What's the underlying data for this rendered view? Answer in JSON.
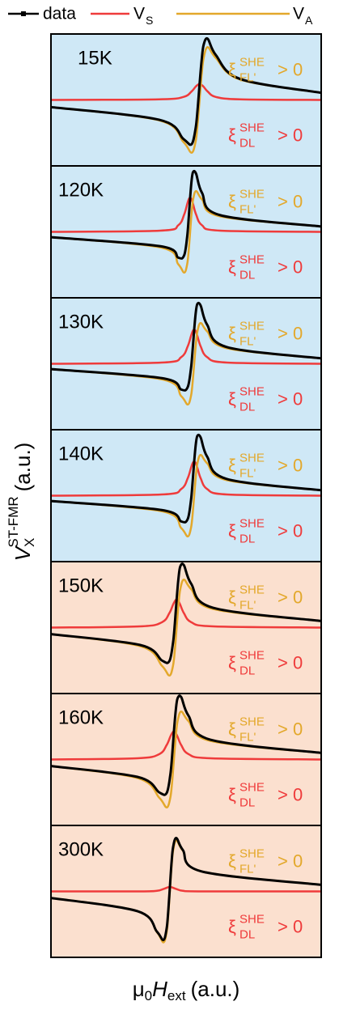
{
  "legend": [
    {
      "name": "data",
      "color": "#000000"
    },
    {
      "name": "V",
      "sub": "S",
      "color": "#ef3b3b"
    },
    {
      "name": "V",
      "sub": "A",
      "color": "#e3a82b"
    }
  ],
  "y_label": {
    "main": "V",
    "sub": "X",
    "sup": "ST-FMR",
    "unit": "(a.u.)"
  },
  "x_label": {
    "mu": "μ",
    "mu_sub": "0",
    "main": "H",
    "sub": "ext",
    "unit": "(a.u.)"
  },
  "chart_data": [
    {
      "type": "line",
      "title": "15K",
      "background": "#cfe8f6",
      "xlim": [
        0,
        100
      ],
      "ylim": [
        -1.1,
        1.1
      ],
      "x": [
        0,
        40,
        49,
        52,
        53.5,
        54.25,
        55,
        55.75,
        56.5,
        58,
        61,
        70,
        100
      ],
      "series": [
        {
          "values": [
            -0.12,
            -0.33,
            -0.65,
            -0.74,
            -0.48,
            -0.16,
            0.27,
            0.66,
            0.92,
            1.02,
            0.75,
            0.35,
            0.12
          ]
        },
        {
          "values": [
            0,
            0.01,
            0.05,
            0.14,
            0.22,
            0.25,
            0.27,
            0.25,
            0.22,
            0.14,
            0.05,
            0.01,
            0
          ]
        },
        {
          "values": [
            -0.12,
            -0.34,
            -0.7,
            -0.88,
            -0.7,
            -0.41,
            0,
            0.41,
            0.7,
            0.88,
            0.7,
            0.34,
            0.12
          ]
        }
      ],
      "annotations": [
        {
          "symbol": "ξ",
          "sup": "SHE",
          "sub": "FL'",
          "text": "> 0",
          "color": "#e3a82b"
        },
        {
          "symbol": "ξ",
          "sup": "SHE",
          "sub": "DL",
          "text": "> 0",
          "color": "#ef3b3b"
        }
      ]
    },
    {
      "type": "line",
      "title": "120K",
      "background": "#cfe8f6",
      "xlim": [
        0,
        100
      ],
      "ylim": [
        -1.1,
        1.1
      ],
      "x": [
        0,
        40.5,
        47.1,
        49.3,
        50.4,
        50.95,
        51.5,
        52.05,
        52.6,
        53.7,
        55.9,
        62.5,
        100
      ],
      "series": [
        {
          "values": [
            -0.09,
            -0.24,
            -0.43,
            -0.39,
            -0.08,
            0.22,
            0.57,
            0.86,
            1.0,
            0.97,
            0.65,
            0.28,
            0.09
          ]
        },
        {
          "values": [
            0,
            0.02,
            0.11,
            0.29,
            0.46,
            0.54,
            0.57,
            0.54,
            0.46,
            0.29,
            0.11,
            0.02,
            0
          ]
        },
        {
          "values": [
            -0.09,
            -0.26,
            -0.54,
            -0.68,
            -0.54,
            -0.32,
            0,
            0.32,
            0.54,
            0.68,
            0.54,
            0.26,
            0.09
          ]
        }
      ],
      "annotations": [
        {
          "symbol": "ξ",
          "sup": "SHE",
          "sub": "FL'",
          "text": "> 0",
          "color": "#e3a82b"
        },
        {
          "symbol": "ξ",
          "sup": "SHE",
          "sub": "DL",
          "text": "> 0",
          "color": "#ef3b3b"
        }
      ]
    },
    {
      "type": "line",
      "title": "130K",
      "background": "#cfe8f6",
      "xlim": [
        0,
        100
      ],
      "ylim": [
        -1.1,
        1.1
      ],
      "x": [
        0,
        41,
        48.2,
        50.6,
        51.8,
        52.4,
        53,
        53.6,
        54.2,
        55.4,
        57.8,
        65,
        100
      ],
      "series": [
        {
          "values": [
            -0.09,
            -0.24,
            -0.43,
            -0.39,
            -0.08,
            0.22,
            0.57,
            0.86,
            1.0,
            0.97,
            0.65,
            0.28,
            0.09
          ]
        },
        {
          "values": [
            0,
            0.02,
            0.11,
            0.29,
            0.46,
            0.54,
            0.57,
            0.54,
            0.46,
            0.29,
            0.11,
            0.02,
            0
          ]
        },
        {
          "values": [
            -0.09,
            -0.26,
            -0.54,
            -0.68,
            -0.54,
            -0.32,
            0,
            0.32,
            0.54,
            0.68,
            0.54,
            0.26,
            0.09
          ]
        }
      ],
      "annotations": [
        {
          "symbol": "ξ",
          "sup": "SHE",
          "sub": "FL'",
          "text": "> 0",
          "color": "#e3a82b"
        },
        {
          "symbol": "ξ",
          "sup": "SHE",
          "sub": "DL",
          "text": "> 0",
          "color": "#ef3b3b"
        }
      ]
    },
    {
      "type": "line",
      "title": "140K",
      "background": "#cfe8f6",
      "xlim": [
        0,
        100
      ],
      "ylim": [
        -1.1,
        1.1
      ],
      "x": [
        0,
        41,
        48.2,
        50.6,
        51.8,
        52.4,
        53,
        53.6,
        54.2,
        55.4,
        57.8,
        65,
        100
      ],
      "series": [
        {
          "values": [
            -0.09,
            -0.24,
            -0.43,
            -0.39,
            -0.08,
            0.22,
            0.57,
            0.86,
            1.0,
            0.97,
            0.65,
            0.28,
            0.09
          ]
        },
        {
          "values": [
            0,
            0.02,
            0.11,
            0.29,
            0.46,
            0.54,
            0.57,
            0.54,
            0.46,
            0.29,
            0.11,
            0.02,
            0
          ]
        },
        {
          "values": [
            -0.09,
            -0.26,
            -0.54,
            -0.68,
            -0.54,
            -0.32,
            0,
            0.32,
            0.54,
            0.68,
            0.54,
            0.26,
            0.09
          ]
        }
      ],
      "annotations": [
        {
          "symbol": "ξ",
          "sup": "SHE",
          "sub": "FL'",
          "text": "> 0",
          "color": "#e3a82b"
        },
        {
          "symbol": "ξ",
          "sup": "SHE",
          "sub": "DL",
          "text": "> 0",
          "color": "#ef3b3b"
        }
      ]
    },
    {
      "type": "line",
      "title": "150K",
      "background": "#fbe0cf",
      "xlim": [
        0,
        100
      ],
      "ylim": [
        -1.1,
        1.1
      ],
      "x": [
        0,
        33,
        41.1,
        43.8,
        45.15,
        45.83,
        46.5,
        47.18,
        47.85,
        49.2,
        51.9,
        60,
        100
      ],
      "series": [
        {
          "values": [
            -0.11,
            -0.29,
            -0.55,
            -0.56,
            -0.26,
            0.06,
            0.47,
            0.82,
            1.02,
            1.04,
            0.73,
            0.33,
            0.11
          ]
        },
        {
          "values": [
            0,
            0.02,
            0.09,
            0.24,
            0.38,
            0.44,
            0.47,
            0.44,
            0.38,
            0.24,
            0.09,
            0.02,
            0
          ]
        },
        {
          "values": [
            -0.11,
            -0.31,
            -0.64,
            -0.8,
            -0.64,
            -0.38,
            0,
            0.38,
            0.64,
            0.8,
            0.64,
            0.31,
            0.11
          ]
        }
      ],
      "annotations": [
        {
          "symbol": "ξ",
          "sup": "SHE",
          "sub": "FL'",
          "text": "> 0",
          "color": "#e3a82b"
        },
        {
          "symbol": "ξ",
          "sup": "SHE",
          "sub": "DL",
          "text": "> 0",
          "color": "#ef3b3b"
        }
      ]
    },
    {
      "type": "line",
      "title": "160K",
      "background": "#fbe0cf",
      "xlim": [
        0,
        100
      ],
      "ylim": [
        -1.1,
        1.1
      ],
      "x": [
        0,
        32,
        40.1,
        42.8,
        44.15,
        44.83,
        45.5,
        46.18,
        46.85,
        48.2,
        50.9,
        59,
        100
      ],
      "series": [
        {
          "values": [
            -0.11,
            -0.29,
            -0.55,
            -0.56,
            -0.26,
            0.06,
            0.47,
            0.82,
            1.02,
            1.04,
            0.73,
            0.33,
            0.11
          ]
        },
        {
          "values": [
            0,
            0.02,
            0.09,
            0.24,
            0.38,
            0.44,
            0.47,
            0.44,
            0.38,
            0.24,
            0.09,
            0.02,
            0
          ]
        },
        {
          "values": [
            -0.11,
            -0.31,
            -0.64,
            -0.8,
            -0.64,
            -0.38,
            0,
            0.38,
            0.64,
            0.8,
            0.64,
            0.31,
            0.11
          ]
        }
      ],
      "annotations": [
        {
          "symbol": "ξ",
          "sup": "SHE",
          "sub": "FL'",
          "text": "> 0",
          "color": "#e3a82b"
        },
        {
          "symbol": "ξ",
          "sup": "SHE",
          "sub": "DL",
          "text": "> 0",
          "color": "#ef3b3b"
        }
      ]
    },
    {
      "type": "line",
      "title": "300K",
      "background": "#fbe0cf",
      "xlim": [
        0,
        100
      ],
      "ylim": [
        -1.1,
        1.1
      ],
      "x": [
        0,
        32,
        39.2,
        41.6,
        42.8,
        43.4,
        44,
        44.6,
        45.2,
        46.4,
        48.8,
        56,
        100
      ],
      "series": [
        {
          "values": [
            -0.11,
            -0.33,
            -0.67,
            -0.81,
            -0.62,
            -0.33,
            0.07,
            0.47,
            0.74,
            0.89,
            0.69,
            0.33,
            0.11
          ]
        },
        {
          "values": [
            0,
            0,
            0.01,
            0.04,
            0.06,
            0.07,
            0.07,
            0.07,
            0.06,
            0.04,
            0.01,
            0,
            0
          ]
        },
        {
          "values": [
            -0.11,
            -0.33,
            -0.68,
            -0.85,
            -0.68,
            -0.4,
            0,
            0.4,
            0.68,
            0.85,
            0.68,
            0.33,
            0.11
          ]
        }
      ],
      "annotations": [
        {
          "symbol": "ξ",
          "sup": "SHE",
          "sub": "FL'",
          "text": "> 0",
          "color": "#e3a82b"
        },
        {
          "symbol": "ξ",
          "sup": "SHE",
          "sub": "DL",
          "text": "> 0",
          "color": "#ef3b3b"
        }
      ]
    }
  ]
}
